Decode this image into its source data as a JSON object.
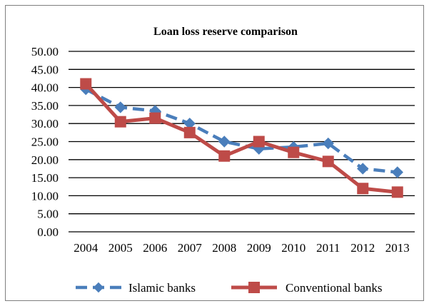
{
  "chart_data": {
    "type": "line",
    "title": "Loan loss reserve comparison",
    "xlabel": "",
    "ylabel": "",
    "categories": [
      "2004",
      "2005",
      "2006",
      "2007",
      "2008",
      "2009",
      "2010",
      "2011",
      "2012",
      "2013"
    ],
    "yticks": [
      "0.00",
      "5.00",
      "10.00",
      "15.00",
      "20.00",
      "25.00",
      "30.00",
      "35.00",
      "40.00",
      "45.00",
      "50.00"
    ],
    "ylim": [
      0,
      50
    ],
    "grid": true,
    "legend_position": "bottom",
    "series": [
      {
        "name": "Islamic banks",
        "values": [
          39.5,
          34.5,
          33.5,
          30.0,
          25.0,
          23.0,
          23.5,
          24.5,
          17.5,
          16.5
        ],
        "color": "#4a7ebb",
        "marker": "diamond",
        "line_style": "dashed"
      },
      {
        "name": "Conventional banks",
        "values": [
          41.0,
          30.5,
          31.5,
          27.5,
          21.0,
          25.0,
          22.0,
          19.5,
          12.0,
          11.0
        ],
        "color": "#be4b48",
        "marker": "square",
        "line_style": "solid"
      }
    ]
  }
}
